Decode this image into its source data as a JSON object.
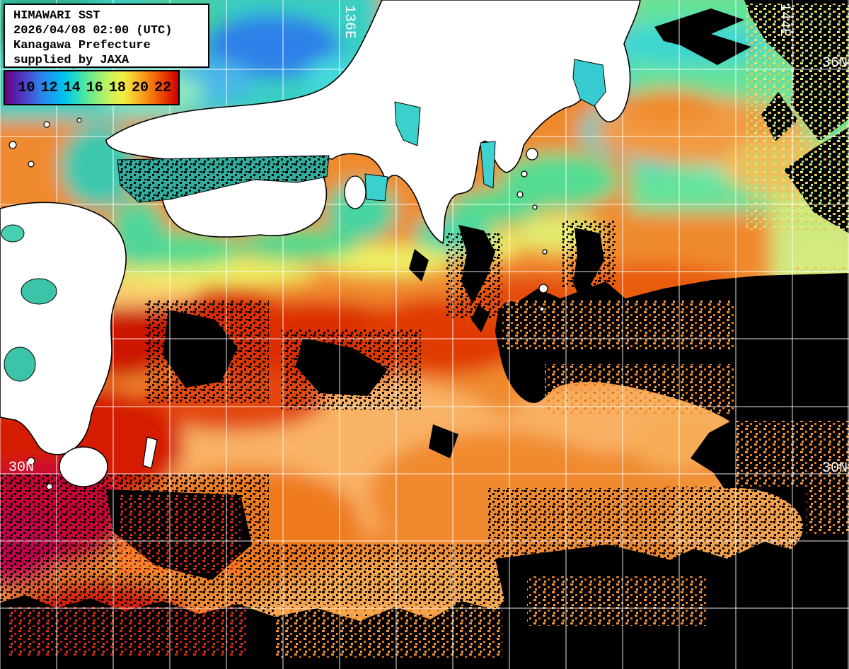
{
  "header": {
    "lines": [
      "HIMAWARI SST",
      "2026/04/08 02:00 (UTC)",
      "Kanagawa Prefecture",
      "supplied by JAXA"
    ]
  },
  "colorbar": {
    "ticks": [
      "10",
      "12",
      "14",
      "16",
      "18",
      "20",
      "22"
    ],
    "unit_hint": "SST scale values",
    "stops": [
      "#6a0080 0%",
      "#5626b0 7%",
      "#4452d4 14%",
      "#2f7ce8 20%",
      "#12a0f0 27%",
      "#00c2ec 34%",
      "#24dcc4 41%",
      "#60ea94 48%",
      "#9cf070 55%",
      "#d2f257 62%",
      "#f2ee44 68%",
      "#f8c02c 75%",
      "#f68c16 82%",
      "#ef5406 89%",
      "#dc1c00 96%",
      "#c40000 100%"
    ]
  },
  "map": {
    "labels": [
      {
        "text": "136E"
      },
      {
        "text": "144E"
      },
      {
        "text": "36N"
      },
      {
        "text": "30N"
      },
      {
        "text": "30N"
      }
    ],
    "colors": {
      "land": "#ffffff",
      "cloud_nodata": "#000000",
      "grid": "#ffffff",
      "cold_water": "#2f7ce8",
      "warm_water": "#dc2a02"
    }
  }
}
